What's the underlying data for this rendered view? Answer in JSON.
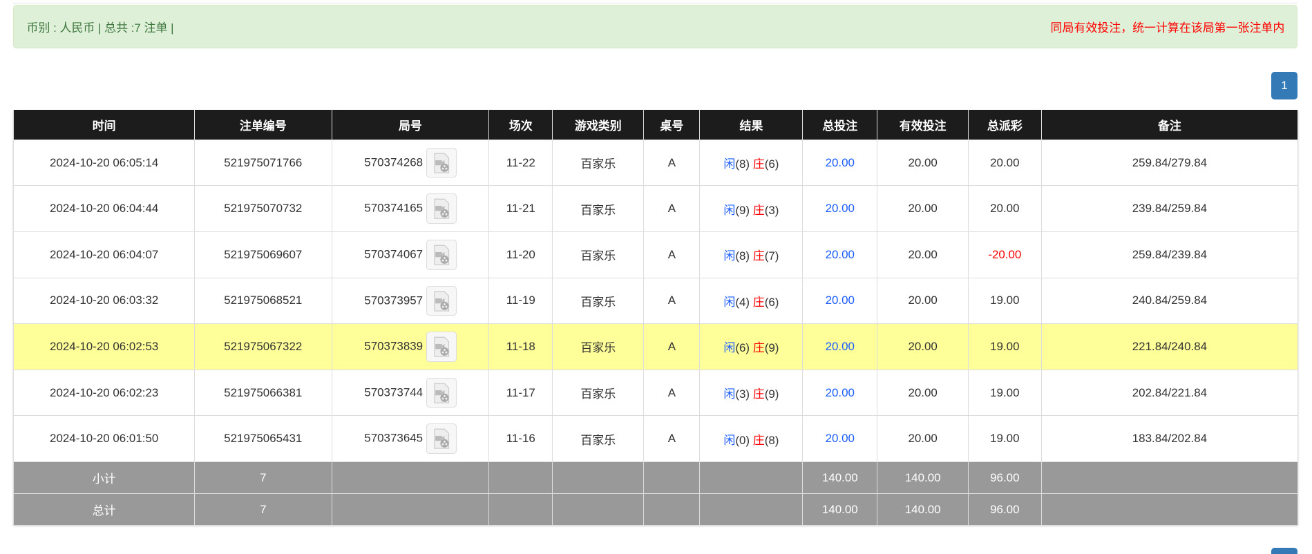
{
  "summary": {
    "left": "币别 : 人民币 | 总共 :7 注单 |",
    "right": "同局有效投注，统一计算在该局第一张注单内"
  },
  "pagination": {
    "current": "1"
  },
  "table": {
    "headers": [
      "时间",
      "注单编号",
      "局号",
      "场次",
      "游戏类别",
      "桌号",
      "结果",
      "总投注",
      "有效投注",
      "总派彩",
      "备注"
    ],
    "rows": [
      {
        "time": "2024-10-20 06:05:14",
        "bet_id": "521975071766",
        "round": "570374268",
        "session": "11-22",
        "game": "百家乐",
        "table": "A",
        "player": "闲",
        "player_score": "(8)",
        "banker": "庄",
        "banker_score": "(6)",
        "total_bet": "20.00",
        "valid_bet": "20.00",
        "payout": "20.00",
        "note": "259.84/279.84"
      },
      {
        "time": "2024-10-20 06:04:44",
        "bet_id": "521975070732",
        "round": "570374165",
        "session": "11-21",
        "game": "百家乐",
        "table": "A",
        "player": "闲",
        "player_score": "(9)",
        "banker": "庄",
        "banker_score": "(3)",
        "total_bet": "20.00",
        "valid_bet": "20.00",
        "payout": "20.00",
        "note": "239.84/259.84"
      },
      {
        "time": "2024-10-20 06:04:07",
        "bet_id": "521975069607",
        "round": "570374067",
        "session": "11-20",
        "game": "百家乐",
        "table": "A",
        "player": "闲",
        "player_score": "(8)",
        "banker": "庄",
        "banker_score": "(7)",
        "total_bet": "20.00",
        "valid_bet": "20.00",
        "payout": "-20.00",
        "note": "259.84/239.84"
      },
      {
        "time": "2024-10-20 06:03:32",
        "bet_id": "521975068521",
        "round": "570373957",
        "session": "11-19",
        "game": "百家乐",
        "table": "A",
        "player": "闲",
        "player_score": "(4)",
        "banker": "庄",
        "banker_score": "(6)",
        "total_bet": "20.00",
        "valid_bet": "20.00",
        "payout": "19.00",
        "note": "240.84/259.84"
      },
      {
        "time": "2024-10-20 06:02:53",
        "bet_id": "521975067322",
        "round": "570373839",
        "session": "11-18",
        "game": "百家乐",
        "table": "A",
        "player": "闲",
        "player_score": "(6)",
        "banker": "庄",
        "banker_score": "(9)",
        "total_bet": "20.00",
        "valid_bet": "20.00",
        "payout": "19.00",
        "note": "221.84/240.84"
      },
      {
        "time": "2024-10-20 06:02:23",
        "bet_id": "521975066381",
        "round": "570373744",
        "session": "11-17",
        "game": "百家乐",
        "table": "A",
        "player": "闲",
        "player_score": "(3)",
        "banker": "庄",
        "banker_score": "(9)",
        "total_bet": "20.00",
        "valid_bet": "20.00",
        "payout": "19.00",
        "note": "202.84/221.84"
      },
      {
        "time": "2024-10-20 06:01:50",
        "bet_id": "521975065431",
        "round": "570373645",
        "session": "11-16",
        "game": "百家乐",
        "table": "A",
        "player": "闲",
        "player_score": "(0)",
        "banker": "庄",
        "banker_score": "(8)",
        "total_bet": "20.00",
        "valid_bet": "20.00",
        "payout": "19.00",
        "note": "183.84/202.84"
      }
    ],
    "subtotal": {
      "label": "小计",
      "count": "7",
      "total_bet": "140.00",
      "valid_bet": "140.00",
      "payout": "96.00"
    },
    "total": {
      "label": "总计",
      "count": "7",
      "total_bet": "140.00",
      "valid_bet": "140.00",
      "payout": "96.00"
    }
  },
  "colors": {
    "highlight_row": "#ffff99",
    "player": "#1a5cff",
    "banker": "#ff0000",
    "negative": "#ff0000",
    "header_bg": "#1c1c1c",
    "summary_bg": "#999999"
  },
  "icons": {
    "round_video": "video-file-icon"
  }
}
